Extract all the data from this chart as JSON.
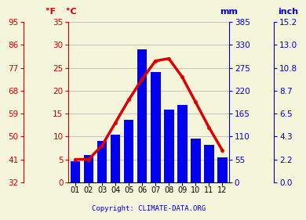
{
  "months": [
    "01",
    "02",
    "03",
    "04",
    "05",
    "06",
    "07",
    "08",
    "09",
    "10",
    "11",
    "12"
  ],
  "precipitation_mm": [
    50,
    65,
    100,
    115,
    150,
    320,
    265,
    175,
    185,
    105,
    90,
    60
  ],
  "temperature_c": [
    5.0,
    5.0,
    8.0,
    13.0,
    18.0,
    22.5,
    26.5,
    27.0,
    23.0,
    17.5,
    12.0,
    7.0
  ],
  "bar_color": "#0000ee",
  "line_color": "#dd0000",
  "left_axis_color": "#cc0000",
  "right_axis_color": "#0000cc",
  "ylabel_left_f": "°F",
  "ylabel_left_c": "°C",
  "ylabel_right_mm": "mm",
  "ylabel_right_inch": "inch",
  "temp_ylim_c": [
    0,
    35
  ],
  "precip_ylim_mm": [
    0,
    385
  ],
  "temp_ticks_c": [
    0,
    5,
    10,
    15,
    20,
    25,
    30,
    35
  ],
  "temp_ticks_f": [
    32,
    41,
    50,
    59,
    68,
    77,
    86,
    95
  ],
  "precip_ticks_mm": [
    0,
    55,
    110,
    165,
    220,
    275,
    330,
    385
  ],
  "precip_ticks_inch": [
    "0.0",
    "2.2",
    "4.3",
    "6.5",
    "8.7",
    "10.8",
    "13.0",
    "15.2"
  ],
  "copyright": "Copyright: CLIMATE-DATA.ORG",
  "bg_color": "#f5f5dc",
  "grid_color": "#bbbbbb",
  "line_width": 2.5,
  "marker_size": 2.5
}
